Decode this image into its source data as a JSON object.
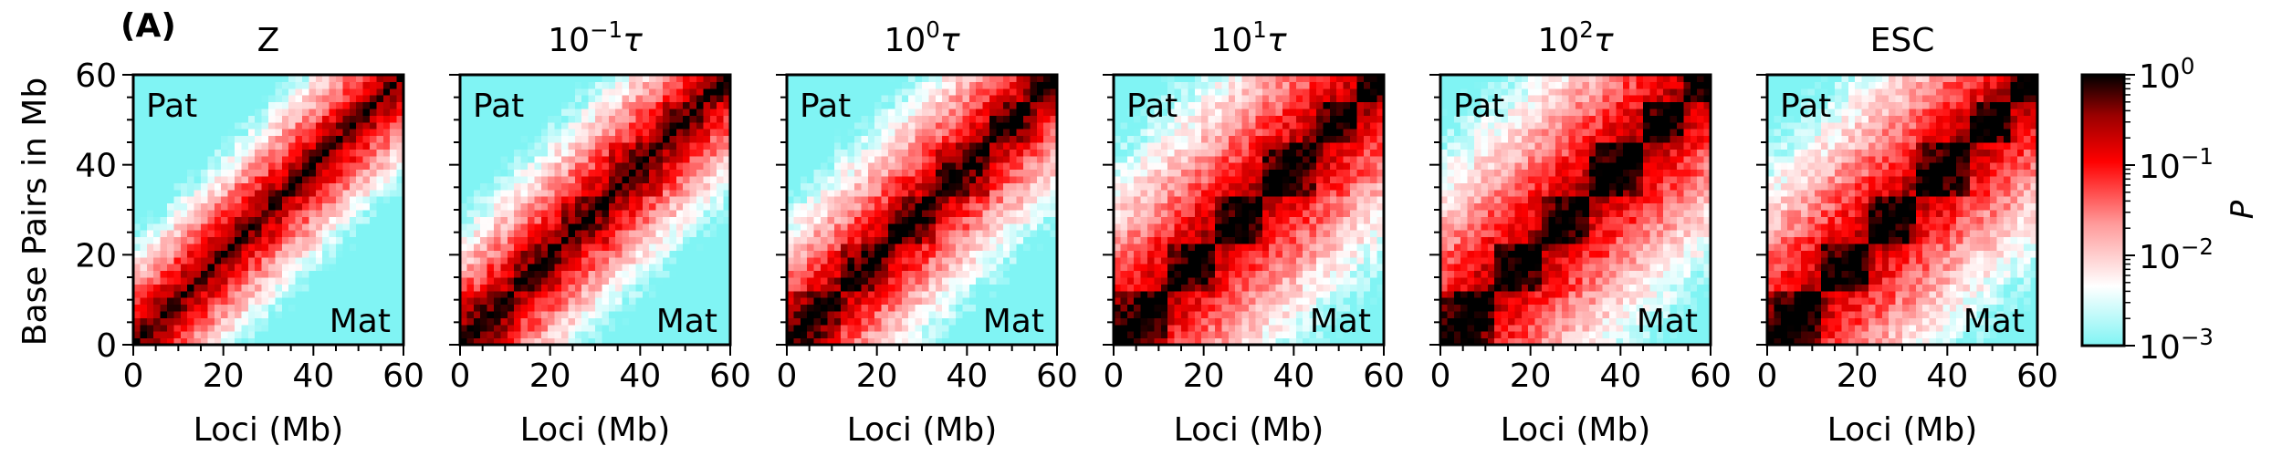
{
  "figure": {
    "panel_label": "(A)",
    "ylabel": "Base Pairs in Mb",
    "xlabel": "Loci (Mb)",
    "corner_label_top": "Pat",
    "corner_label_bottom": "Mat"
  },
  "chart_data": {
    "type": "heatmap",
    "x_range": [
      0,
      60
    ],
    "y_range": [
      0,
      60
    ],
    "x_ticks": [
      0,
      20,
      40,
      60
    ],
    "y_ticks": [
      0,
      20,
      40,
      60
    ],
    "xlabel": "Loci (Mb)",
    "ylabel": "Base Pairs in Mb",
    "panels": [
      {
        "title_base": "Z",
        "title_exp": "",
        "title_suffix": "",
        "contact_spread": 0.1,
        "block_contrast": 0.05
      },
      {
        "title_base": "10",
        "title_exp": "−1",
        "title_suffix": "τ",
        "contact_spread": 0.18,
        "block_contrast": 0.2
      },
      {
        "title_base": "10",
        "title_exp": "0",
        "title_suffix": "τ",
        "contact_spread": 0.24,
        "block_contrast": 0.3
      },
      {
        "title_base": "10",
        "title_exp": "1",
        "title_suffix": "τ",
        "contact_spread": 0.45,
        "block_contrast": 0.45
      },
      {
        "title_base": "10",
        "title_exp": "2",
        "title_suffix": "τ",
        "contact_spread": 0.5,
        "block_contrast": 0.5
      },
      {
        "title_base": "",
        "title_exp": "",
        "title_suffix": "ESC",
        "contact_spread": 0.48,
        "block_contrast": 0.55
      }
    ],
    "colorbar": {
      "label": "P",
      "scale": "log",
      "range": [
        0.001,
        1
      ],
      "ticks": [
        {
          "base": "10",
          "exp": "0"
        },
        {
          "base": "10",
          "exp": "−1"
        },
        {
          "base": "10",
          "exp": "−2"
        },
        {
          "base": "10",
          "exp": "−3"
        }
      ],
      "colors": [
        "#80f4f4",
        "#ffffff",
        "#ff8080",
        "#ff0000",
        "#000000"
      ]
    }
  }
}
